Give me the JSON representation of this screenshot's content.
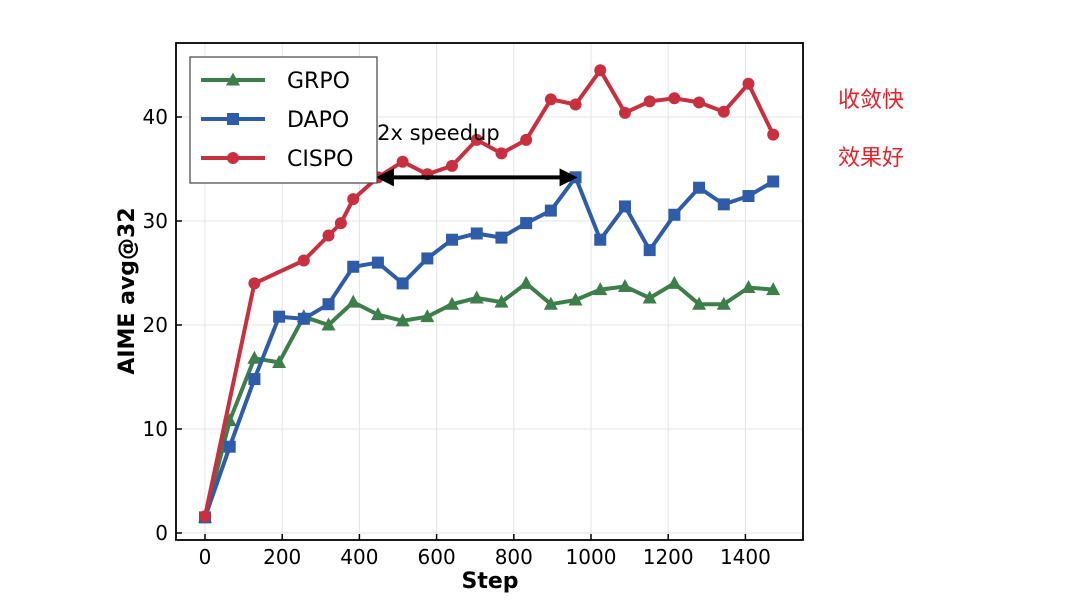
{
  "chart_data": {
    "type": "line",
    "title": "",
    "xlabel": "Step",
    "ylabel": "AIME avg@32",
    "xlim": [
      -70,
      1540
    ],
    "ylim": [
      -0.5,
      46
    ],
    "xticks": [
      0,
      200,
      400,
      600,
      800,
      1000,
      1200,
      1400
    ],
    "yticks": [
      0,
      10,
      20,
      30,
      40
    ],
    "grid": true,
    "legend": "top-left",
    "series": [
      {
        "name": "GRPO",
        "color": "#3c7f4a",
        "marker": "triangle",
        "x": [
          0,
          64,
          128,
          192,
          256,
          320,
          384,
          448,
          512,
          576,
          640,
          704,
          768,
          832,
          896,
          960,
          1024,
          1088,
          1152,
          1216,
          1280,
          1344,
          1408,
          1472
        ],
        "y": [
          1.5,
          10.8,
          16.8,
          16.4,
          20.8,
          20.0,
          22.2,
          21.0,
          20.4,
          20.8,
          22.0,
          22.6,
          22.2,
          24.0,
          22.0,
          22.4,
          23.4,
          23.7,
          22.6,
          24.0,
          22.0,
          22.0,
          23.6,
          23.4
        ]
      },
      {
        "name": "DAPO",
        "color": "#2e5ca8",
        "marker": "square",
        "x": [
          0,
          64,
          128,
          192,
          256,
          320,
          384,
          448,
          512,
          576,
          640,
          704,
          768,
          832,
          896,
          960,
          1024,
          1088,
          1152,
          1216,
          1280,
          1344,
          1408,
          1472
        ],
        "y": [
          1.5,
          8.3,
          14.8,
          20.8,
          20.6,
          22.0,
          25.6,
          26.0,
          24.0,
          26.4,
          28.2,
          28.8,
          28.4,
          29.8,
          31.0,
          34.2,
          28.2,
          31.4,
          27.2,
          30.6,
          33.2,
          31.6,
          32.4,
          33.8
        ]
      },
      {
        "name": "CISPO",
        "color": "#c9303f",
        "marker": "circle",
        "x": [
          0,
          128,
          256,
          320,
          352,
          384,
          448,
          512,
          576,
          640,
          704,
          768,
          832,
          896,
          960,
          1024,
          1088,
          1152,
          1216,
          1280,
          1344,
          1408,
          1472
        ],
        "y": [
          1.6,
          24.0,
          26.2,
          28.6,
          29.8,
          32.1,
          34.2,
          35.7,
          34.5,
          35.3,
          37.8,
          36.5,
          37.8,
          41.7,
          41.2,
          44.5,
          40.4,
          41.5,
          41.8,
          41.4,
          40.5,
          43.2,
          38.3
        ]
      }
    ],
    "annotations": [
      {
        "text": "2x speedup",
        "arrow_from": [
          448,
          34.2
        ],
        "arrow_to": [
          960,
          34.2
        ]
      }
    ]
  },
  "side_notes": [
    "收敛快",
    "效果好"
  ]
}
